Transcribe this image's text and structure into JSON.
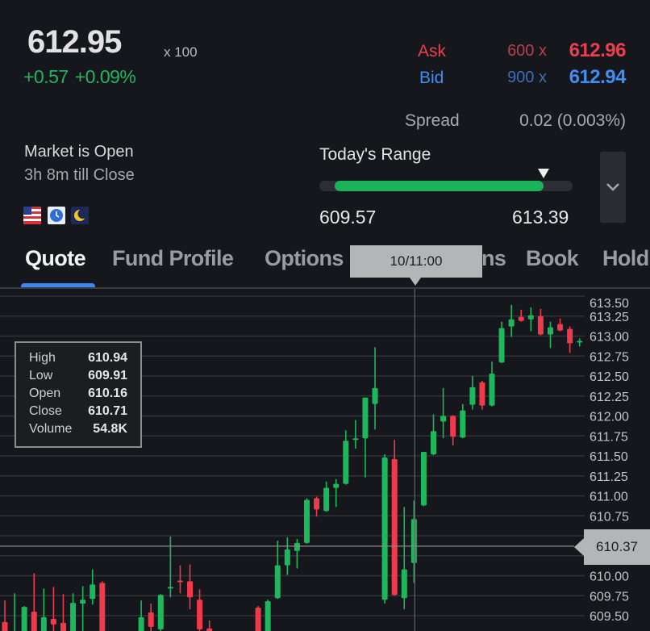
{
  "quote": {
    "price": "612.95",
    "multiplier": "x 100",
    "change": "+0.57",
    "change_pct": "+0.09%",
    "ask_label": "Ask",
    "ask_size": "600 x",
    "ask_price": "612.96",
    "bid_label": "Bid",
    "bid_size": "900 x",
    "bid_price": "612.94",
    "spread_label": "Spread",
    "spread_value": "0.02 (0.003%)"
  },
  "market": {
    "status": "Market is Open",
    "countdown": "3h 8m till Close",
    "icons": [
      "us-flag-icon",
      "clock-icon",
      "moon-icon"
    ]
  },
  "range": {
    "title": "Today's Range",
    "low": "609.57",
    "high": "613.39",
    "current_fraction": 0.885
  },
  "tabs": [
    {
      "label": "Quote",
      "active": true
    },
    {
      "label": "Fund Profile"
    },
    {
      "label": "Options"
    },
    {
      "label": "ns"
    },
    {
      "label": "Book"
    },
    {
      "label": "Hold"
    }
  ],
  "crosshair": {
    "time": "10/11:00",
    "price": "610.37"
  },
  "ohlc_tooltip": {
    "high_label": "High",
    "high": "610.94",
    "low_label": "Low",
    "low": "609.91",
    "open_label": "Open",
    "open": "610.16",
    "close_label": "Close",
    "close": "610.71",
    "volume_label": "Volume",
    "volume": "54.8K"
  },
  "colors": {
    "up": "#1db75c",
    "down": "#ef3a4c",
    "accent": "#3f86f0",
    "background": "#15171c"
  },
  "chart_data": {
    "type": "candlestick",
    "ylim": [
      609.3,
      613.55
    ],
    "y_ticks": [
      "613.50",
      "613.25",
      "613.00",
      "612.75",
      "612.50",
      "612.25",
      "612.00",
      "611.75",
      "611.50",
      "611.25",
      "611.00",
      "610.75",
      "610.37",
      "610.00",
      "609.75",
      "609.50"
    ],
    "grid": true,
    "ohlc": [
      [
        609.42,
        609.69,
        609.1,
        609.2
      ],
      [
        609.1,
        609.78,
        609.0,
        609.3
      ],
      [
        609.2,
        609.62,
        609.1,
        609.61
      ],
      [
        609.55,
        610.03,
        609.1,
        609.2
      ],
      [
        609.2,
        609.84,
        609.1,
        609.48
      ],
      [
        609.46,
        609.86,
        609.2,
        609.39
      ],
      [
        609.41,
        609.77,
        609.1,
        609.2
      ],
      [
        609.2,
        609.78,
        609.1,
        609.66
      ],
      [
        609.65,
        609.87,
        609.2,
        609.7
      ],
      [
        609.71,
        610.08,
        609.64,
        609.89
      ],
      [
        609.91,
        609.93,
        609.1,
        609.2
      ],
      null,
      null,
      null,
      [
        609.2,
        609.69,
        609.1,
        609.48
      ],
      [
        609.54,
        609.65,
        609.2,
        609.36
      ],
      [
        609.33,
        609.77,
        609.25,
        609.76
      ],
      [
        609.84,
        610.49,
        609.73,
        609.86
      ],
      [
        609.94,
        610.13,
        609.78,
        609.92
      ],
      [
        609.93,
        610.14,
        609.58,
        609.73
      ],
      [
        609.7,
        609.83,
        609.2,
        609.33
      ],
      [
        609.34,
        609.44,
        609.1,
        609.2
      ],
      null,
      null,
      null,
      null,
      [
        609.6,
        609.62,
        609.1,
        609.2
      ],
      [
        609.2,
        609.7,
        609.1,
        609.68
      ],
      [
        609.72,
        610.44,
        609.71,
        610.13
      ],
      [
        610.13,
        610.48,
        610.01,
        610.33
      ],
      [
        610.31,
        610.46,
        610.09,
        610.41
      ],
      [
        610.41,
        610.97,
        610.4,
        610.95
      ],
      [
        610.97,
        610.99,
        610.74,
        610.83
      ],
      [
        610.81,
        611.18,
        610.8,
        611.1
      ],
      [
        611.1,
        611.21,
        610.86,
        611.15
      ],
      [
        611.15,
        611.82,
        611.14,
        611.69
      ],
      [
        611.7,
        611.95,
        611.59,
        611.72
      ],
      [
        611.72,
        612.23,
        611.23,
        612.23
      ],
      [
        612.15,
        612.86,
        611.83,
        612.35
      ],
      [
        609.7,
        611.52,
        609.65,
        611.48
      ],
      [
        611.46,
        611.7,
        609.75,
        609.76
      ],
      [
        609.72,
        610.86,
        609.58,
        610.08
      ],
      [
        610.16,
        610.94,
        609.91,
        610.71
      ],
      [
        610.88,
        611.55,
        610.87,
        611.55
      ],
      [
        611.52,
        612.02,
        611.51,
        611.81
      ],
      [
        611.93,
        612.35,
        611.72,
        612.0
      ],
      [
        612.0,
        612.01,
        611.63,
        611.74
      ],
      [
        611.73,
        612.15,
        611.72,
        612.07
      ],
      [
        612.14,
        612.5,
        612.08,
        612.36
      ],
      [
        612.42,
        612.44,
        612.08,
        612.13
      ],
      [
        612.13,
        612.68,
        612.12,
        612.53
      ],
      [
        612.67,
        613.18,
        612.66,
        613.1
      ],
      [
        613.12,
        613.39,
        612.99,
        613.21
      ],
      [
        613.24,
        613.33,
        613.18,
        613.19
      ],
      [
        613.21,
        613.36,
        613.06,
        613.26
      ],
      [
        613.25,
        613.34,
        613.01,
        613.02
      ],
      [
        613.02,
        613.18,
        612.85,
        613.11
      ],
      [
        613.15,
        613.22,
        613.06,
        613.07
      ],
      [
        613.09,
        613.12,
        612.79,
        612.91
      ],
      [
        612.93,
        612.97,
        612.87,
        612.94
      ]
    ],
    "crosshair_index": 42,
    "crosshair_price": 610.37
  }
}
